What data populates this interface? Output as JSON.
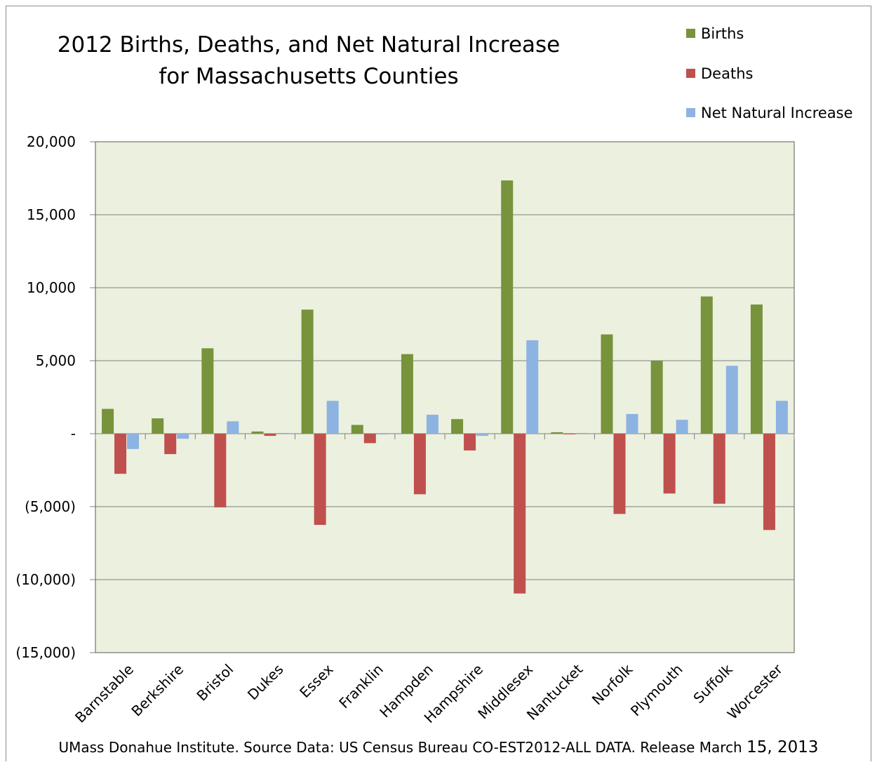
{
  "chart_data": {
    "type": "bar",
    "title_lines": [
      "2012 Births, Deaths, and Net Natural Increase",
      "for Massachusetts Counties"
    ],
    "xlabel": "",
    "ylabel": "",
    "ylim": [
      -15000,
      20000
    ],
    "yticks": [
      20000,
      15000,
      10000,
      5000,
      0,
      -5000,
      -10000,
      -15000
    ],
    "ytick_labels": [
      "20,000",
      "15,000",
      "10,000",
      "5,000",
      "-",
      "(5,000)",
      "(10,000)",
      "(15,000)"
    ],
    "grid": true,
    "legend_position": "top-right",
    "categories": [
      "Barnstable",
      "Berkshire",
      "Bristol",
      "Dukes",
      "Essex",
      "Franklin",
      "Hampden",
      "Hampshire",
      "Middlesex",
      "Nantucket",
      "Norfolk",
      "Plymouth",
      "Suffolk",
      "Worcester"
    ],
    "series": [
      {
        "name": "Births",
        "color": "#77933c",
        "values": [
          1700,
          1050,
          5850,
          150,
          8500,
          600,
          5450,
          1000,
          17350,
          100,
          6800,
          5000,
          9400,
          8850
        ]
      },
      {
        "name": "Deaths",
        "color": "#c0504d",
        "values": [
          -2750,
          -1400,
          -5050,
          -150,
          -6250,
          -650,
          -4150,
          -1150,
          -10950,
          -30,
          -5500,
          -4100,
          -4800,
          -6600
        ]
      },
      {
        "name": "Net Natural Increase",
        "color": "#8db3e2",
        "values": [
          -1050,
          -350,
          850,
          50,
          2250,
          -50,
          1300,
          -150,
          6400,
          50,
          1350,
          950,
          4650,
          2250
        ]
      }
    ],
    "plot_background": "#ebf1de",
    "source_text": "UMass Donahue Institute. Source Data: US Census Bureau CO-EST2012-ALL DATA. Release March",
    "source_date": "15, 2013"
  }
}
